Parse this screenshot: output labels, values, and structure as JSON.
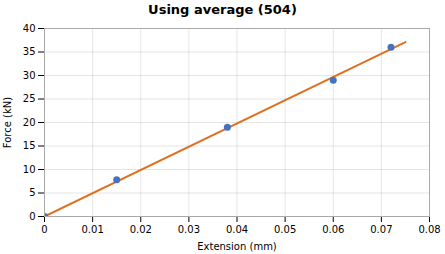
{
  "chart_data": {
    "type": "scatter",
    "title": "Using average (504)",
    "xlabel": "Extension (mm)",
    "ylabel": "Force (kN)",
    "series": [
      {
        "type": "scatter",
        "color": "#4472c4",
        "marker": "circle",
        "x": [
          0.0,
          0.015,
          0.038,
          0.06,
          0.072
        ],
        "values": [
          0.0,
          7.8,
          19.0,
          29.0,
          36.0
        ]
      },
      {
        "type": "line",
        "color": "#e07020",
        "line_style": "solid",
        "x": [
          0.0,
          0.075
        ],
        "values": [
          0.0,
          37.101789
        ]
      }
    ],
    "xlim": [
      0,
      0.08
    ],
    "ylim": [
      0,
      40
    ],
    "xticks": [
      0,
      0.01,
      0.02,
      0.03,
      0.04,
      0.05,
      0.06,
      0.07,
      0.08
    ],
    "yticks": [
      0,
      5,
      10,
      15,
      20,
      25,
      30,
      35,
      40
    ],
    "grid": true
  }
}
